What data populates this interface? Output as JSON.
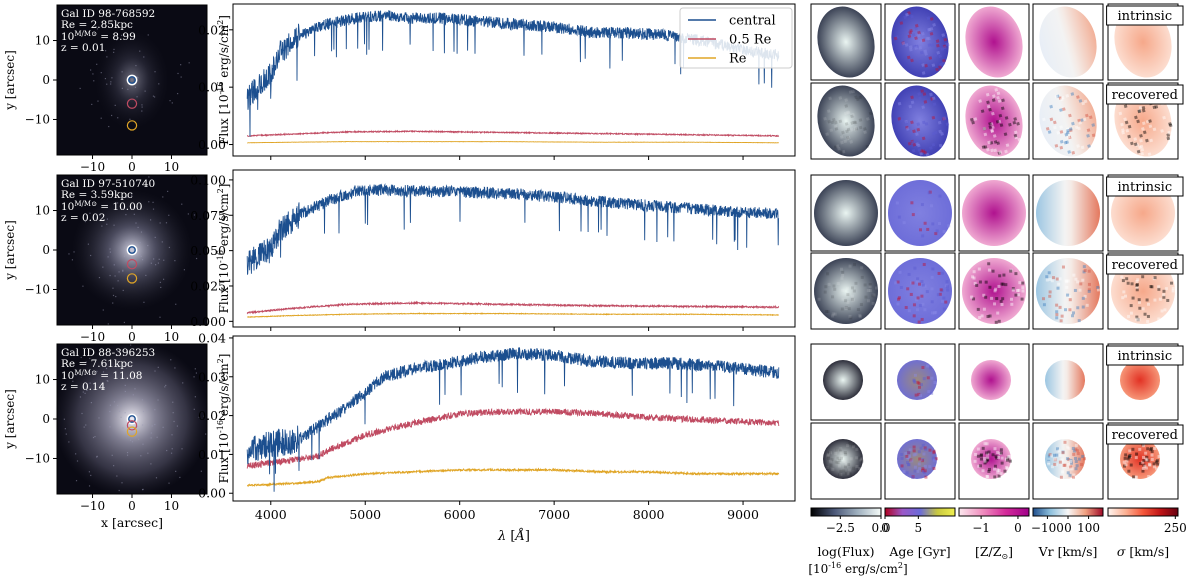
{
  "chart_data": {
    "type": "line",
    "images": {
      "xlabel": "x [arcsec]",
      "ylabel": "y [arcsec]",
      "xticks": [
        -10,
        0,
        10
      ],
      "yticks": [
        -10,
        0,
        10
      ],
      "lim": [
        -19,
        19
      ],
      "galaxies": [
        {
          "info": [
            "Gal ID 98-768592",
            "Re = 2.85kpc",
            "10^{M/M⊙} = 8.99",
            "z = 0.01"
          ],
          "apertures": [
            0,
            -6,
            -11.5
          ]
        },
        {
          "info": [
            "Gal ID 97-510740",
            "Re = 3.59kpc",
            "10^{M/M⊙} = 10.00",
            "z = 0.02"
          ],
          "apertures": [
            0,
            -3.6,
            -7.2
          ]
        },
        {
          "info": [
            "Gal ID 88-396253",
            "Re = 7.61kpc",
            "10^{M/M⊙} = 11.08",
            "z = 0.14"
          ],
          "apertures": [
            0,
            -1.6,
            -3.2
          ]
        }
      ]
    },
    "spectra": {
      "xlabel": "λ [Å]",
      "ylabel": "Flux [10^-16 erg/s/cm^2]",
      "xlim": [
        3600,
        9550
      ],
      "xticks": [
        4000,
        5000,
        6000,
        7000,
        8000,
        9000
      ],
      "legend": [
        "central",
        "0.5 Re",
        "Re"
      ],
      "legend_loc": "top-right",
      "series_colors": [
        "#1c4f8f",
        "#c04b62",
        "#e0a526"
      ],
      "panels": [
        {
          "ylim": [
            -0.002,
            0.0245
          ],
          "yticks": [
            0.0,
            0.01,
            0.02
          ],
          "ytick_labels": [
            "0.00",
            "0.01",
            "0.02"
          ],
          "series": [
            {
              "name": "central",
              "x": [
                3750,
                3900,
                4000,
                4100,
                4300,
                4600,
                4900,
                5200,
                5500,
                5800,
                6200,
                6600,
                7000,
                7400,
                7800,
                8200,
                8600,
                9000,
                9400
              ],
              "values": [
                0.008,
                0.011,
                0.012,
                0.016,
                0.019,
                0.021,
                0.022,
                0.0225,
                0.022,
                0.022,
                0.0215,
                0.021,
                0.0205,
                0.0195,
                0.0195,
                0.019,
                0.018,
                0.0165,
                0.0155
              ]
            },
            {
              "name": "0.5 Re",
              "x": [
                3750,
                4200,
                4800,
                5500,
                6500,
                7500,
                8500,
                9400
              ],
              "values": [
                0.0015,
                0.0018,
                0.0022,
                0.0023,
                0.0021,
                0.0019,
                0.0017,
                0.0015
              ]
            },
            {
              "name": "Re",
              "x": [
                3750,
                4200,
                4800,
                5500,
                6500,
                7500,
                8500,
                9400
              ],
              "values": [
                0.0003,
                0.0004,
                0.0005,
                0.0005,
                0.0005,
                0.0004,
                0.0004,
                0.0003
              ]
            }
          ]
        },
        {
          "ylim": [
            -0.004,
            0.107
          ],
          "yticks": [
            0.0,
            0.025,
            0.05,
            0.075,
            0.1
          ],
          "ytick_labels": [
            "0.000",
            "0.025",
            "0.050",
            "0.075",
            "0.100"
          ],
          "series": [
            {
              "name": "central",
              "x": [
                3750,
                3900,
                4000,
                4100,
                4300,
                4600,
                4900,
                5200,
                5500,
                5800,
                6200,
                6600,
                7000,
                7400,
                7800,
                8200,
                8600,
                9000,
                9400
              ],
              "values": [
                0.04,
                0.048,
                0.05,
                0.065,
                0.075,
                0.085,
                0.092,
                0.093,
                0.092,
                0.092,
                0.091,
                0.09,
                0.088,
                0.085,
                0.083,
                0.081,
                0.079,
                0.077,
                0.076
              ]
            },
            {
              "name": "0.5 Re",
              "x": [
                3750,
                4200,
                4800,
                5500,
                6500,
                7500,
                8500,
                9400
              ],
              "values": [
                0.006,
                0.009,
                0.012,
                0.013,
                0.012,
                0.011,
                0.0105,
                0.01
              ]
            },
            {
              "name": "Re",
              "x": [
                3750,
                4200,
                4800,
                5500,
                6500,
                7500,
                8500,
                9400
              ],
              "values": [
                0.003,
                0.004,
                0.005,
                0.0055,
                0.0055,
                0.005,
                0.005,
                0.0045
              ]
            }
          ]
        },
        {
          "ylim": [
            -0.002,
            0.0405
          ],
          "yticks": [
            0.0,
            0.01,
            0.02,
            0.03,
            0.04
          ],
          "ytick_labels": [
            "0.00",
            "0.01",
            "0.02",
            "0.03",
            "0.04"
          ],
          "series": [
            {
              "name": "central",
              "x": [
                3750,
                3900,
                4100,
                4300,
                4500,
                4600,
                4800,
                5000,
                5200,
                5500,
                5800,
                6200,
                6600,
                7000,
                7400,
                7800,
                8200,
                8600,
                9000,
                9400
              ],
              "values": [
                0.011,
                0.012,
                0.013,
                0.014,
                0.017,
                0.019,
                0.022,
                0.026,
                0.03,
                0.032,
                0.033,
                0.035,
                0.036,
                0.0355,
                0.034,
                0.0335,
                0.0335,
                0.033,
                0.032,
                0.031
              ]
            },
            {
              "name": "0.5 Re",
              "x": [
                3750,
                4200,
                4500,
                4600,
                5000,
                5500,
                6000,
                6500,
                7000,
                7500,
                8000,
                8500,
                9000,
                9400
              ],
              "values": [
                0.007,
                0.0085,
                0.0095,
                0.011,
                0.015,
                0.018,
                0.0205,
                0.021,
                0.021,
                0.0205,
                0.0195,
                0.019,
                0.0185,
                0.018
              ]
            },
            {
              "name": "Re",
              "x": [
                3750,
                4200,
                4500,
                4600,
                5000,
                5500,
                6000,
                6500,
                7000,
                7500,
                8000,
                8500,
                9000,
                9400
              ],
              "values": [
                0.002,
                0.0025,
                0.003,
                0.004,
                0.005,
                0.0055,
                0.006,
                0.006,
                0.006,
                0.0055,
                0.0055,
                0.005,
                0.005,
                0.005
              ]
            }
          ]
        }
      ]
    },
    "maps": {
      "row_tags": [
        "intrinsic",
        "recovered",
        "intrinsic",
        "recovered",
        "intrinsic",
        "recovered"
      ],
      "colorbars": [
        {
          "label": "log(Flux)",
          "label2": "[10^{-16} erg/s/cm^2]",
          "ticks": [
            "-2.5",
            "0.0"
          ],
          "tick_values": [
            -2.5,
            0
          ],
          "range": [
            -4.3,
            0
          ],
          "colors": [
            "#000000",
            "#4b5878",
            "#9fb0bf",
            "#f5fbf8"
          ]
        },
        {
          "label": "Age [Gyr]",
          "ticks": [
            "0",
            "5"
          ],
          "tick_values": [
            0,
            5
          ],
          "range": [
            0,
            10.5
          ],
          "colors": [
            "#b00020",
            "#9b58c8",
            "#6b6bd8",
            "#c8c840",
            "#f0f050"
          ]
        },
        {
          "label": "[Z/Z⊙]",
          "ticks": [
            "-1",
            "0"
          ],
          "tick_values": [
            -1,
            0
          ],
          "range": [
            -1.6,
            0.3
          ],
          "colors": [
            "#fbe8ee",
            "#f08fbf",
            "#d42a9a",
            "#a0008a"
          ]
        },
        {
          "label": "Vr [km/s]",
          "ticks": [
            "-100",
            "0",
            "100"
          ],
          "tick_values": [
            -100,
            0,
            100
          ],
          "range": [
            -170,
            170
          ],
          "colors": [
            "#1f4e8c",
            "#8ec0dd",
            "#f7f7f7",
            "#f0a080",
            "#a00a28"
          ]
        },
        {
          "label": "σ [km/s]",
          "ticks": [
            "250"
          ],
          "tick_values": [
            250
          ],
          "range": [
            0,
            260
          ],
          "colors": [
            "#fff5f0",
            "#fcb295",
            "#f5573a",
            "#bf1416",
            "#670010"
          ]
        }
      ]
    }
  }
}
